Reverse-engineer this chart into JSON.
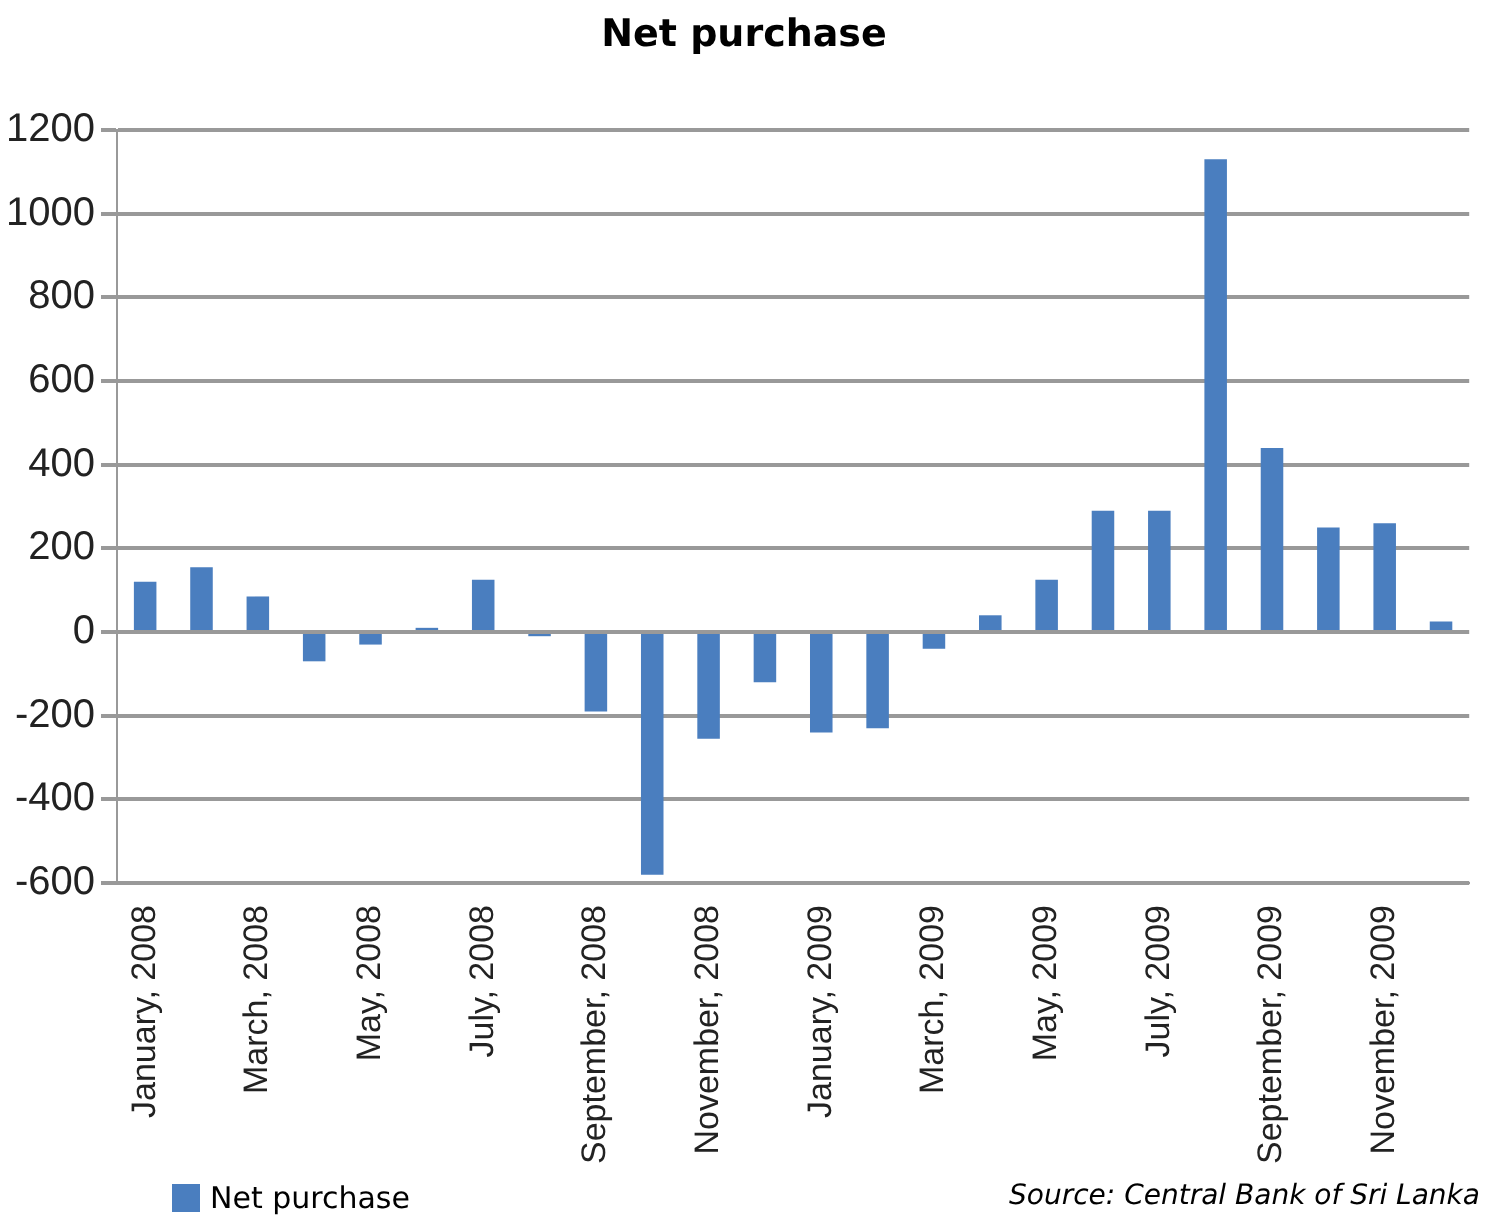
{
  "chart_data": {
    "type": "bar",
    "title": "Net purchase",
    "categories": [
      "January, 2008",
      null,
      "March, 2008",
      null,
      "May, 2008",
      null,
      "July, 2008",
      null,
      "September, 2008",
      null,
      "November, 2008",
      null,
      "January, 2009",
      null,
      "March, 2009",
      null,
      "May, 2009",
      null,
      "July, 2009",
      null,
      "September, 2009",
      null,
      "November, 2009",
      null
    ],
    "series": [
      {
        "name": "Net purchase",
        "color": "#4a7ebf",
        "values": [
          120,
          155,
          85,
          -70,
          -30,
          10,
          125,
          -10,
          -190,
          -580,
          -255,
          -120,
          -240,
          -230,
          -40,
          40,
          125,
          290,
          290,
          1130,
          440,
          250,
          260,
          25
        ]
      }
    ],
    "ylim": [
      -600,
      1200
    ],
    "yticks": [
      -600,
      -400,
      -200,
      0,
      200,
      400,
      600,
      800,
      1000,
      1200
    ],
    "grid": "y",
    "legend": "bottom left",
    "annotations": [
      "Source: Central Bank of Sri Lanka"
    ]
  }
}
